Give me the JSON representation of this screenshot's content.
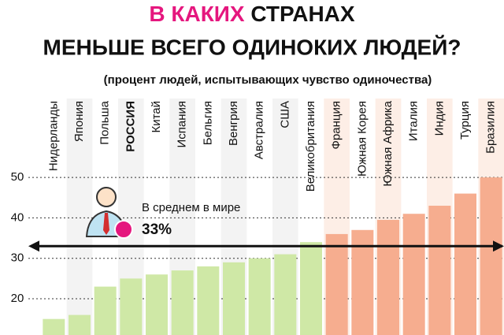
{
  "chart_data": {
    "type": "bar",
    "title_highlight": "В КАКИХ",
    "title_line1": "СТРАНАХ",
    "title_line2": "МЕНЬШЕ ВСЕГО ОДИНОКИХ ЛЮДЕЙ?",
    "subtitle": "(процент людей, испытывающих чувство одиночества)",
    "categories": [
      "Нидерланды",
      "Япония",
      "Польша",
      "РОССИЯ",
      "Китай",
      "Испания",
      "Бельгия",
      "Венгрия",
      "Австралия",
      "США",
      "Великобритания",
      "Франция",
      "Южная Корея",
      "Южная Африка",
      "Италия",
      "Индия",
      "Турция",
      "Бразилия"
    ],
    "values": [
      15,
      16,
      23,
      25,
      26,
      27,
      28,
      29,
      30,
      31,
      34,
      36,
      37,
      39.5,
      41,
      43,
      46,
      50
    ],
    "colors": [
      "#cfe8a6",
      "#cfe8a6",
      "#cfe8a6",
      "#cfe8a6",
      "#cfe8a6",
      "#cfe8a6",
      "#cfe8a6",
      "#cfe8a6",
      "#cfe8a6",
      "#cfe8a6",
      "#cfe8a6",
      "#f6ad8f",
      "#f6ad8f",
      "#f6ad8f",
      "#f6ad8f",
      "#f6ad8f",
      "#f6ad8f",
      "#f6ad8f"
    ],
    "highlight_color": "#e5177e",
    "average": {
      "label": "В среднем в мире",
      "value": 33,
      "value_label": "33%"
    },
    "ylim": [
      11,
      52
    ],
    "yticks": [
      20,
      30,
      40,
      50
    ],
    "grid": true
  }
}
